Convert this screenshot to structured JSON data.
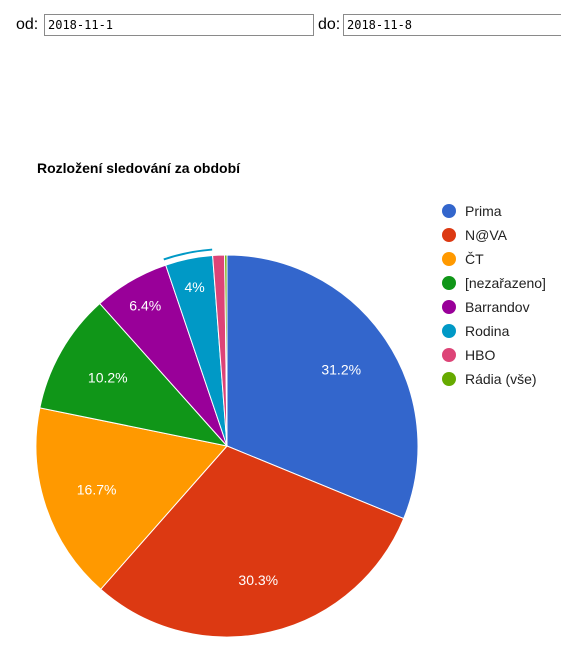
{
  "filters": {
    "from_label": "od:",
    "from_value": "2018-11-1",
    "to_label": "do:",
    "to_value": "2018-11-8"
  },
  "chart_data": {
    "type": "pie",
    "title": "Rozložení sledování za období",
    "legend_position": "right",
    "slices": [
      {
        "name": "Prima",
        "value": 31.2,
        "label": "31.2%",
        "color": "#3366cc"
      },
      {
        "name": "N@VA",
        "value": 30.3,
        "label": "30.3%",
        "color": "#dc3912"
      },
      {
        "name": "ČT",
        "value": 16.7,
        "label": "16.7%",
        "color": "#ff9900"
      },
      {
        "name": "[nezařazeno]",
        "value": 10.2,
        "label": "10.2%",
        "color": "#109618"
      },
      {
        "name": "Barrandov",
        "value": 6.4,
        "label": "6.4%",
        "color": "#990099"
      },
      {
        "name": "Rodina",
        "value": 4.0,
        "label": "4%",
        "color": "#0099c6"
      },
      {
        "name": "HBO",
        "value": 1.0,
        "label": "",
        "color": "#dd4477"
      },
      {
        "name": "Rádia (vše)",
        "value": 0.2,
        "label": "",
        "color": "#66aa00"
      }
    ]
  }
}
